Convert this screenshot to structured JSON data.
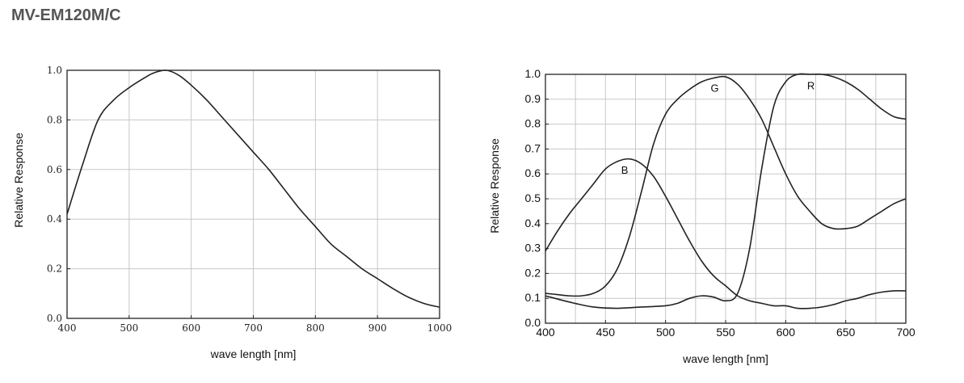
{
  "header": {
    "title": "MV-EM120M/C"
  },
  "chart_data": [
    {
      "type": "line",
      "xlabel": "wave length [nm]",
      "ylabel": "Relative Response",
      "xlim": [
        400,
        1000
      ],
      "ylim": [
        0,
        1.0
      ],
      "x_ticks": [
        "400",
        "500",
        "600",
        "700",
        "800",
        "900",
        "1000"
      ],
      "y_ticks": [
        "0.0",
        "0.2",
        "0.4",
        "0.6",
        "0.8",
        "1.0"
      ],
      "grid": true,
      "series": [
        {
          "x": [
            400,
            425,
            450,
            475,
            500,
            525,
            540,
            560,
            580,
            600,
            625,
            650,
            675,
            700,
            725,
            750,
            775,
            800,
            825,
            850,
            875,
            900,
            925,
            950,
            975,
            1000
          ],
          "y": [
            0.42,
            0.62,
            0.8,
            0.88,
            0.93,
            0.97,
            0.99,
            1.0,
            0.98,
            0.94,
            0.88,
            0.81,
            0.74,
            0.67,
            0.6,
            0.52,
            0.44,
            0.37,
            0.3,
            0.25,
            0.2,
            0.16,
            0.12,
            0.085,
            0.06,
            0.045
          ]
        }
      ]
    },
    {
      "type": "line",
      "xlabel": "wave length [nm]",
      "ylabel": "Relative Response",
      "xlim": [
        400,
        700
      ],
      "ylim": [
        0,
        1.0
      ],
      "x_ticks": [
        "400",
        "450",
        "500",
        "550",
        "600",
        "650",
        "700"
      ],
      "y_ticks": [
        "0.0",
        "0.1",
        "0.2",
        "0.3",
        "0.4",
        "0.5",
        "0.6",
        "0.7",
        "0.8",
        "0.9",
        "1.0"
      ],
      "grid": true,
      "series": [
        {
          "name": "B",
          "x": [
            400,
            410,
            420,
            430,
            440,
            450,
            460,
            470,
            480,
            490,
            500,
            510,
            520,
            530,
            540,
            550,
            560,
            570,
            580,
            590,
            600,
            610,
            620,
            630,
            640,
            650,
            660,
            670,
            680,
            690,
            700
          ],
          "y": [
            0.29,
            0.37,
            0.44,
            0.5,
            0.56,
            0.62,
            0.65,
            0.66,
            0.64,
            0.59,
            0.51,
            0.42,
            0.33,
            0.25,
            0.19,
            0.15,
            0.11,
            0.09,
            0.08,
            0.07,
            0.07,
            0.06,
            0.06,
            0.065,
            0.075,
            0.09,
            0.1,
            0.115,
            0.125,
            0.13,
            0.13
          ]
        },
        {
          "name": "G",
          "x": [
            400,
            410,
            420,
            430,
            440,
            450,
            460,
            470,
            480,
            490,
            500,
            510,
            520,
            530,
            540,
            550,
            560,
            570,
            580,
            590,
            600,
            610,
            620,
            630,
            640,
            650,
            660,
            670,
            680,
            690,
            700
          ],
          "y": [
            0.12,
            0.115,
            0.11,
            0.11,
            0.12,
            0.15,
            0.22,
            0.35,
            0.53,
            0.72,
            0.84,
            0.9,
            0.94,
            0.97,
            0.985,
            0.99,
            0.96,
            0.9,
            0.82,
            0.71,
            0.6,
            0.51,
            0.45,
            0.4,
            0.38,
            0.38,
            0.39,
            0.42,
            0.45,
            0.48,
            0.5
          ]
        },
        {
          "name": "R",
          "x": [
            400,
            420,
            440,
            460,
            480,
            500,
            510,
            520,
            530,
            540,
            550,
            560,
            570,
            580,
            590,
            600,
            610,
            620,
            630,
            640,
            650,
            660,
            670,
            680,
            690,
            700
          ],
          "y": [
            0.11,
            0.085,
            0.065,
            0.06,
            0.065,
            0.07,
            0.08,
            0.1,
            0.11,
            0.105,
            0.09,
            0.12,
            0.3,
            0.62,
            0.87,
            0.97,
            1.0,
            1.0,
            1.0,
            0.99,
            0.97,
            0.94,
            0.9,
            0.86,
            0.83,
            0.82
          ]
        }
      ]
    }
  ]
}
